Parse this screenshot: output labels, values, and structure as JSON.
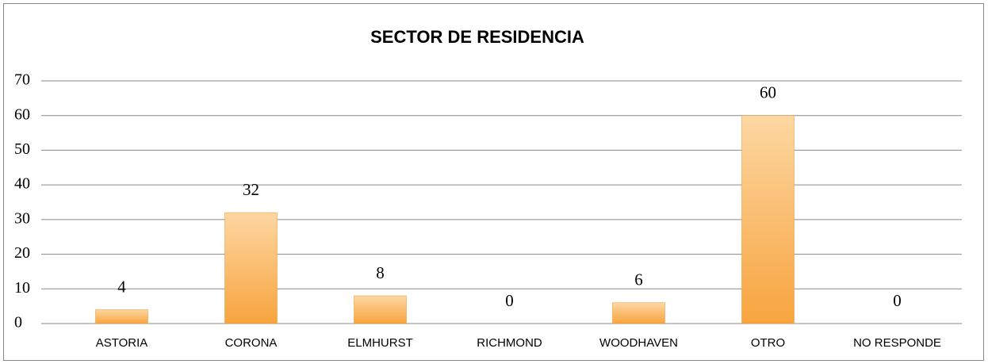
{
  "chart_data": {
    "type": "bar",
    "title": "SECTOR DE RESIDENCIA",
    "categories": [
      "ASTORIA",
      "CORONA",
      "ELMHURST",
      "RICHMOND",
      "WOODHAVEN",
      "OTRO",
      "NO RESPONDE"
    ],
    "values": [
      4,
      32,
      8,
      0,
      6,
      60,
      0
    ],
    "color": "#f9ab4a",
    "ylim": [
      0,
      70
    ],
    "yticks": [
      0,
      10,
      20,
      30,
      40,
      50,
      60,
      70
    ],
    "grid": true
  }
}
